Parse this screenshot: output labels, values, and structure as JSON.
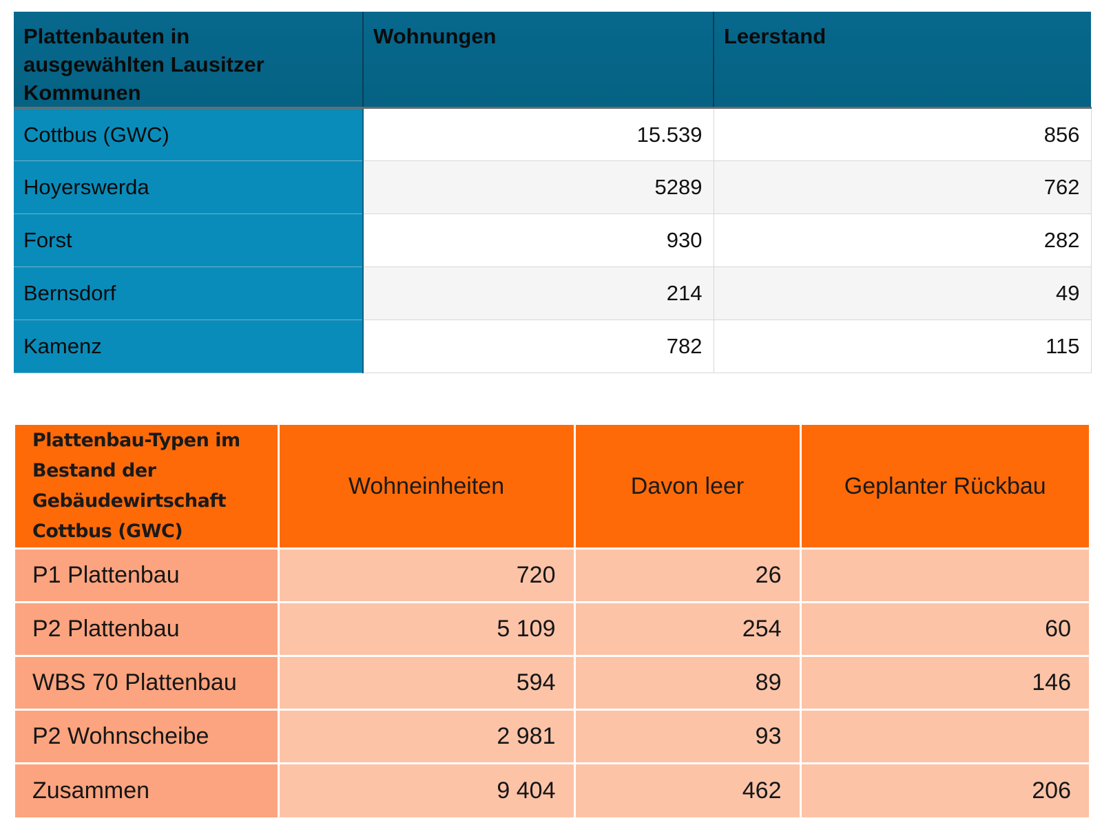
{
  "table1": {
    "headers": [
      "Plattenbauten in ausgewählten Lausitzer Kommunen",
      "Wohnungen",
      "Leerstand"
    ],
    "rows": [
      {
        "name": "Cottbus (GWC)",
        "wohnungen": "15.539",
        "leerstand": "856"
      },
      {
        "name": "Hoyerswerda",
        "wohnungen": "5289",
        "leerstand": "762"
      },
      {
        "name": "Forst",
        "wohnungen": "930",
        "leerstand": "282"
      },
      {
        "name": "Bernsdorf",
        "wohnungen": "214",
        "leerstand": "49"
      },
      {
        "name": "Kamenz",
        "wohnungen": "782",
        "leerstand": "115"
      }
    ]
  },
  "table2": {
    "headers": [
      "Plattenbau-Typen im Bestand der Gebäudewirtschaft Cottbus (GWC)",
      "Wohneinheiten",
      "Davon leer",
      "Geplanter Rückbau"
    ],
    "rows": [
      {
        "type": "P1 Plattenbau",
        "wohneinheiten": "720",
        "leer": "26",
        "rueckbau": ""
      },
      {
        "type": "P2 Plattenbau",
        "wohneinheiten": "5 109",
        "leer": "254",
        "rueckbau": "60"
      },
      {
        "type": "WBS 70 Plattenbau",
        "wohneinheiten": "594",
        "leer": "89",
        "rueckbau": "146"
      },
      {
        "type": "P2 Wohnscheibe",
        "wohneinheiten": "2 981",
        "leer": "93",
        "rueckbau": ""
      },
      {
        "type": "Zusammen",
        "wohneinheiten": "9 404",
        "leer": "462",
        "rueckbau": "206"
      }
    ]
  },
  "colors": {
    "table1_header": "#056283",
    "table1_label": "#0a8cba",
    "table2_header": "#ff6a09",
    "table2_label": "#fca47f",
    "table2_cell": "#fcc3a7"
  }
}
